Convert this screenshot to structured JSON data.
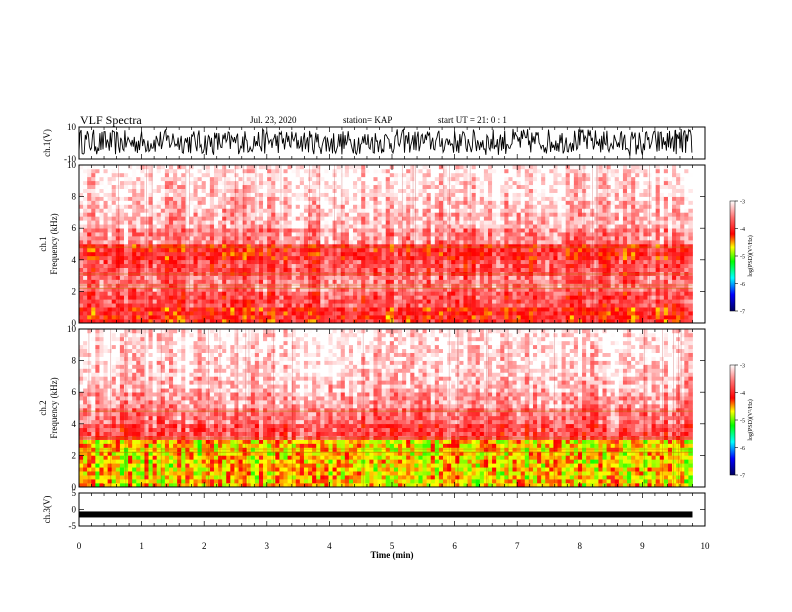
{
  "header": {
    "title": "VLF Spectra",
    "date": "Jul. 23, 2020",
    "station": "station= KAP",
    "start": "start UT =  21: 0  : 1"
  },
  "chart_data": [
    {
      "type": "line",
      "panel": "waveform-ch1",
      "ylabel": "ch.1(V)",
      "ylim": [
        -10,
        10
      ],
      "yticks": [
        "10",
        "-10"
      ],
      "x": [
        0,
        0.5,
        1,
        1.5,
        2,
        2.5,
        3,
        3.5,
        4,
        4.5,
        5,
        5.5,
        6,
        6.5,
        7,
        7.5,
        8,
        8.5,
        9,
        9.5,
        9.8
      ],
      "envelope_max": [
        9,
        8,
        8,
        9,
        8,
        8,
        9,
        8,
        8,
        8,
        9,
        8,
        8,
        9,
        9,
        9,
        9,
        8,
        8,
        9,
        9
      ],
      "envelope_min": [
        -7,
        -8,
        -7,
        -6,
        -8,
        -7,
        -7,
        -6,
        -8,
        -7,
        -7,
        -6,
        -7,
        -8,
        -7,
        -7,
        -6,
        -7,
        -9,
        -7,
        -8
      ]
    },
    {
      "type": "heatmap",
      "panel": "spectrogram-ch1",
      "ylabel": "ch.1 Frequency (kHz)",
      "ylim": [
        0,
        10
      ],
      "yticks": [
        "0",
        "2",
        "4",
        "6",
        "8",
        "10"
      ],
      "freq_khz": [
        0.5,
        1.5,
        2.5,
        3.5,
        4.5,
        5.5,
        6.5,
        7.5,
        8.5,
        9.5
      ],
      "log_psd": [
        -4.1,
        -3.8,
        -3.6,
        -3.8,
        -4.0,
        -3.5,
        -3.3,
        -3.2,
        -3.1,
        -3.05
      ],
      "colorbar": {
        "label": "log(PSD)(V²/Hz)",
        "range": [
          -7,
          -3
        ],
        "ticks": [
          "-3",
          "-4",
          "-5",
          "-6",
          "-7"
        ]
      }
    },
    {
      "type": "heatmap",
      "panel": "spectrogram-ch2",
      "ylabel": "ch.2 Frequency (kHz)",
      "ylim": [
        0,
        10
      ],
      "yticks": [
        "0",
        "2",
        "4",
        "6",
        "8",
        "10"
      ],
      "freq_khz": [
        0.5,
        1.5,
        2.5,
        3.5,
        4.5,
        5.5,
        6.5,
        7.5,
        8.5,
        9.5
      ],
      "log_psd": [
        -4.6,
        -4.6,
        -4.6,
        -3.8,
        -3.6,
        -3.4,
        -3.25,
        -3.15,
        -3.1,
        -3.05
      ],
      "colorbar": {
        "label": "log(PSD)(V²/Hz)",
        "range": [
          -7,
          -3
        ],
        "ticks": [
          "-3",
          "-4",
          "-5",
          "-6",
          "-7"
        ]
      }
    },
    {
      "type": "line",
      "panel": "waveform-ch3",
      "ylabel": "ch.3(V)",
      "ylim": [
        -5,
        5
      ],
      "yticks": [
        "5",
        "0",
        "-5"
      ],
      "x": [
        0,
        9.8
      ],
      "y": [
        -1.5,
        -1.5
      ]
    }
  ],
  "xaxis": {
    "label": "Time (min)",
    "range": [
      0,
      10
    ],
    "ticks": [
      "0",
      "1",
      "2",
      "3",
      "4",
      "5",
      "6",
      "7",
      "8",
      "9",
      "10"
    ]
  }
}
